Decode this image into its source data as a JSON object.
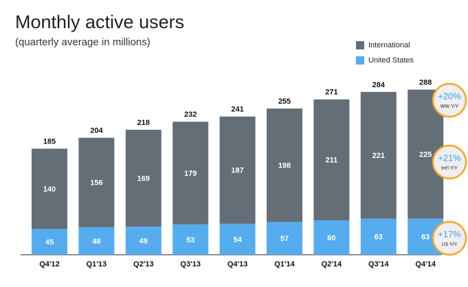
{
  "chart_data": {
    "type": "stacked-bar",
    "title": "Monthly active users",
    "subtitle": "(quarterly average in millions)",
    "categories": [
      "Q4'12",
      "Q1'13",
      "Q2'13",
      "Q3'13",
      "Q4'13",
      "Q1'14",
      "Q2'14",
      "Q3'14",
      "Q4'14"
    ],
    "series": [
      {
        "name": "United States",
        "color": "#55acee",
        "values": [
          45,
          48,
          49,
          53,
          54,
          57,
          60,
          63,
          63
        ]
      },
      {
        "name": "International",
        "color": "#646e77",
        "values": [
          140,
          156,
          169,
          179,
          187,
          198,
          211,
          221,
          225
        ]
      }
    ],
    "totals": [
      185,
      204,
      218,
      232,
      241,
      255,
      271,
      284,
      288
    ],
    "annotations": [
      {
        "text": "+20%",
        "label": "WW Y/Y"
      },
      {
        "text": "+21%",
        "label": "Int'l Y/Y"
      },
      {
        "text": "+17%",
        "label": "US Y/Y"
      }
    ]
  }
}
